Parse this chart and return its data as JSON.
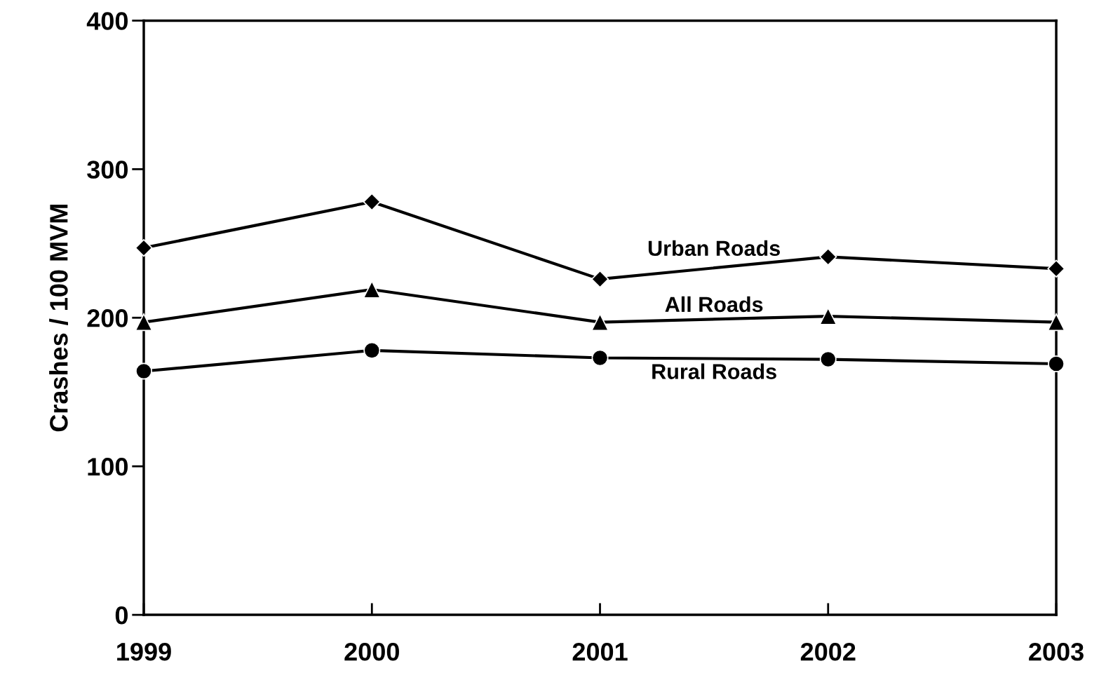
{
  "chart_data": {
    "type": "line",
    "ylabel": "Crashes / 100 MVM",
    "x": [
      1999,
      2000,
      2001,
      2002,
      2003
    ],
    "xlim": [
      1999,
      2003
    ],
    "xticks": [
      1999,
      2000,
      2001,
      2002,
      2003
    ],
    "ylim": [
      0,
      400
    ],
    "yticks": [
      0,
      100,
      200,
      300,
      400
    ],
    "grid": false,
    "legend": false,
    "line_style": "solid",
    "series": [
      {
        "name": "Urban Roads",
        "color": "#000000",
        "marker": "diamond",
        "values": [
          247,
          278,
          226,
          241,
          233
        ]
      },
      {
        "name": "All Roads",
        "color": "#000000",
        "marker": "triangle",
        "values": [
          197,
          219,
          197,
          201,
          197
        ]
      },
      {
        "name": "Rural Roads",
        "color": "#000000",
        "marker": "circle",
        "values": [
          164,
          178,
          173,
          172,
          169
        ]
      }
    ]
  }
}
